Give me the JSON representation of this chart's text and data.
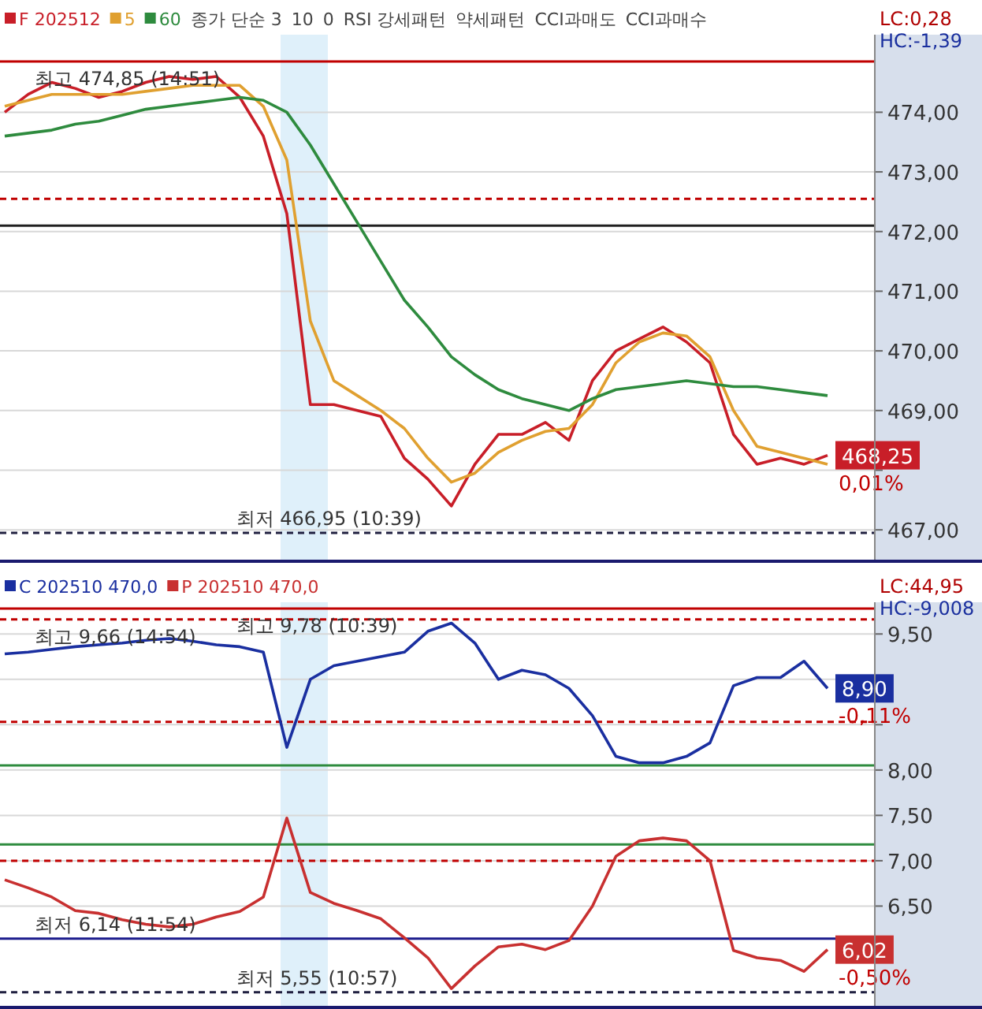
{
  "chart_data": [
    {
      "type": "line",
      "ylim": [
        466.5,
        475.3
      ],
      "tick_labels": "y",
      "grid": "y",
      "legend": "top left",
      "categories": [
        null,
        null,
        null,
        null,
        null,
        null,
        null,
        null,
        null,
        null,
        null,
        null,
        null,
        null,
        null,
        null,
        null,
        null,
        null,
        null,
        null,
        null,
        null,
        null,
        null,
        null,
        null,
        null,
        null,
        null,
        null,
        null,
        null,
        null,
        null,
        null
      ],
      "yticks": [
        {
          "value": 467,
          "label": "467,00"
        },
        {
          "value": 468,
          "label": null
        },
        {
          "value": 469,
          "label": "469,00"
        },
        {
          "value": 470,
          "label": "470,00"
        },
        {
          "value": 471,
          "label": "471,00"
        },
        {
          "value": 472,
          "label": "472,00"
        },
        {
          "value": 473,
          "label": "473,00"
        },
        {
          "value": 474,
          "label": "474,00"
        }
      ],
      "series": [
        {
          "name": "F 202512",
          "color": "#c81e28",
          "values": [
            474.0,
            474.3,
            474.5,
            474.4,
            474.25,
            474.35,
            474.5,
            474.6,
            474.55,
            474.6,
            474.25,
            473.6,
            472.3,
            469.1,
            469.1,
            469.0,
            468.9,
            468.2,
            467.85,
            467.4,
            468.1,
            468.6,
            468.6,
            468.8,
            468.5,
            469.5,
            470.0,
            470.2,
            470.4,
            470.15,
            469.8,
            468.6,
            468.1,
            468.2,
            468.1,
            468.25
          ],
          "value_labels": [
            null,
            null,
            null,
            null,
            null,
            null,
            null,
            null,
            null,
            null,
            null,
            null,
            null,
            null,
            null,
            null,
            null,
            null,
            null,
            null,
            null,
            null,
            null,
            null,
            null,
            null,
            null,
            null,
            null,
            null,
            null,
            null,
            null,
            null,
            null,
            "468,25"
          ]
        },
        {
          "name": "5",
          "color": "#e0a030",
          "values": [
            474.1,
            474.2,
            474.3,
            474.3,
            474.3,
            474.3,
            474.35,
            474.4,
            474.45,
            474.45,
            474.45,
            474.1,
            473.2,
            470.5,
            469.5,
            469.25,
            469.0,
            468.7,
            468.2,
            467.8,
            467.95,
            468.3,
            468.5,
            468.65,
            468.7,
            469.1,
            469.8,
            470.15,
            470.3,
            470.25,
            469.9,
            469.0,
            468.4,
            468.3,
            468.2,
            468.1
          ]
        },
        {
          "name": "60",
          "color": "#2e8b3e",
          "values": [
            473.6,
            473.65,
            473.7,
            473.8,
            473.85,
            473.95,
            474.05,
            474.1,
            474.15,
            474.2,
            474.25,
            474.2,
            474.0,
            473.45,
            472.8,
            472.15,
            471.5,
            470.85,
            470.4,
            469.9,
            469.6,
            469.35,
            469.2,
            469.1,
            469.0,
            469.2,
            469.35,
            469.4,
            469.45,
            469.5,
            469.45,
            469.4,
            469.4,
            469.35,
            469.3,
            469.25
          ]
        }
      ],
      "ref_lines": [
        {
          "axis": "y",
          "value": 474.85,
          "color": "#c00000",
          "label": "최고 474,85 (14:51)"
        },
        {
          "axis": "y",
          "value": 472.55,
          "color": "#c00000",
          "line_style": "dashed"
        },
        {
          "axis": "y",
          "value": 472.1,
          "color": "#202020"
        },
        {
          "axis": "y",
          "value": 466.95,
          "color": "#202040",
          "line_style": "dashed",
          "label": "최저 466,95 (10:39)"
        }
      ],
      "annotations": [
        "종가 단순 3",
        "10",
        "0",
        "RSI 강세패턴",
        "약세패턴",
        "CCI과매도",
        "CCI과매수",
        "LC:0,28",
        "HC:-1,39",
        "0,01%"
      ]
    },
    {
      "type": "line",
      "ylim": [
        5.4,
        9.85
      ],
      "tick_labels": "y",
      "grid": "y",
      "legend": "top left",
      "categories": [
        null,
        null,
        null,
        null,
        null,
        null,
        null,
        null,
        null,
        null,
        null,
        null,
        null,
        null,
        null,
        null,
        null,
        null,
        null,
        null,
        null,
        null,
        null,
        null,
        null,
        null,
        null,
        null,
        null,
        null,
        null,
        null,
        null,
        null,
        null,
        null
      ],
      "yticks": [
        {
          "value": 6.5,
          "label": "6,50"
        },
        {
          "value": 7.0,
          "label": "7,00"
        },
        {
          "value": 7.5,
          "label": "7,50"
        },
        {
          "value": 8.0,
          "label": "8,00"
        },
        {
          "value": 8.5,
          "label": null
        },
        {
          "value": 9.0,
          "label": null
        },
        {
          "value": 9.5,
          "label": "9,50"
        }
      ],
      "series": [
        {
          "name": "C 202510 470,0",
          "color": "#1a2fa0",
          "values": [
            9.28,
            9.3,
            9.33,
            9.36,
            9.38,
            9.4,
            9.43,
            9.45,
            9.42,
            9.38,
            9.36,
            9.3,
            8.25,
            9.0,
            9.15,
            9.2,
            9.25,
            9.3,
            9.53,
            9.62,
            9.4,
            9.0,
            9.1,
            9.05,
            8.9,
            8.6,
            8.15,
            8.08,
            8.08,
            8.15,
            8.3,
            8.93,
            9.02,
            9.02,
            9.2,
            8.9
          ],
          "value_labels": [
            null,
            null,
            null,
            null,
            null,
            null,
            null,
            null,
            null,
            null,
            null,
            null,
            null,
            null,
            null,
            null,
            null,
            null,
            null,
            null,
            null,
            null,
            null,
            null,
            null,
            null,
            null,
            null,
            null,
            null,
            null,
            null,
            null,
            null,
            null,
            "8,90"
          ]
        },
        {
          "name": "P 202510 470,0",
          "color": "#c83030",
          "values": [
            6.79,
            6.7,
            6.6,
            6.45,
            6.42,
            6.35,
            6.3,
            6.27,
            6.3,
            6.38,
            6.44,
            6.6,
            7.47,
            6.65,
            6.53,
            6.45,
            6.36,
            6.15,
            5.93,
            5.59,
            5.84,
            6.05,
            6.08,
            6.02,
            6.12,
            6.5,
            7.05,
            7.22,
            7.25,
            7.22,
            7.0,
            6.01,
            5.93,
            5.9,
            5.78,
            6.02
          ],
          "value_labels": [
            null,
            null,
            null,
            null,
            null,
            null,
            null,
            null,
            null,
            null,
            null,
            null,
            null,
            null,
            null,
            null,
            null,
            null,
            null,
            null,
            null,
            null,
            null,
            null,
            null,
            null,
            null,
            null,
            null,
            null,
            null,
            null,
            null,
            null,
            null,
            "6,02"
          ]
        }
      ],
      "ref_lines": [
        {
          "axis": "y",
          "value": 9.66,
          "color": "#c00000",
          "line_style": "dashed",
          "label": "최고 9,66 (14:54)"
        },
        {
          "axis": "y",
          "value": 9.78,
          "color": "#c00000",
          "label": "최고 9,78 (10:39)"
        },
        {
          "axis": "y",
          "value": 8.53,
          "color": "#c00000",
          "line_style": "dashed"
        },
        {
          "axis": "y",
          "value": 8.05,
          "color": "#2e8b3e"
        },
        {
          "axis": "y",
          "value": 7.18,
          "color": "#2e8b3e"
        },
        {
          "axis": "y",
          "value": 7.0,
          "color": "#c00000",
          "line_style": "dashed"
        },
        {
          "axis": "y",
          "value": 6.14,
          "color": "#1a1a8c",
          "label": "최저 6,14 (11:54)"
        },
        {
          "axis": "y",
          "value": 5.55,
          "color": "#202040",
          "line_style": "dashed",
          "label": "최저 5,55 (10:57)"
        }
      ],
      "annotations": [
        "LC:44,95",
        "HC:-9,008",
        "-0,11%",
        "-0,50%"
      ]
    }
  ]
}
